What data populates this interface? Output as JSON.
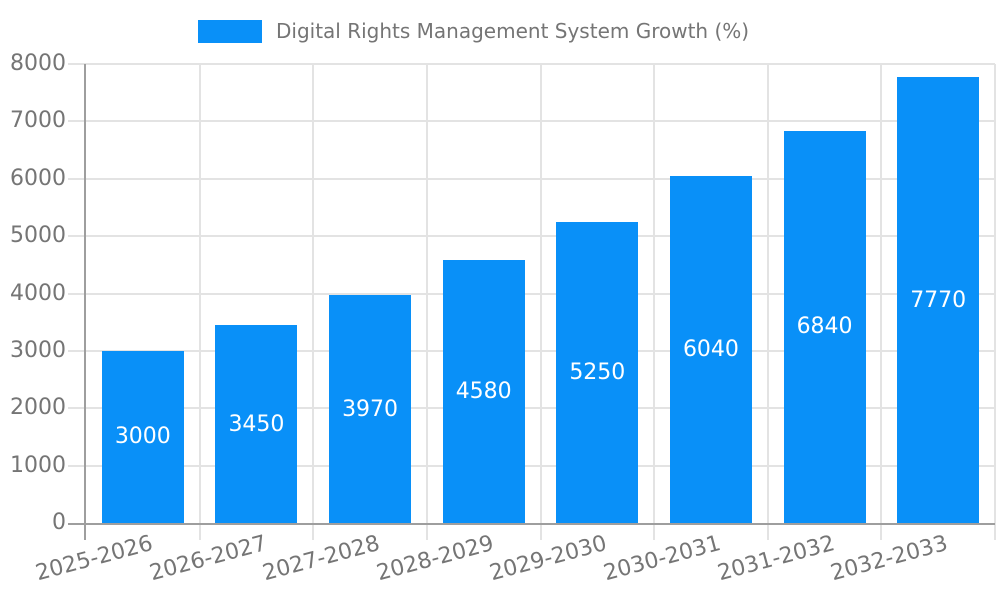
{
  "legend": {
    "label": "Digital Rights Management System Growth (%)"
  },
  "colors": {
    "bar": "#0990f8",
    "grid": "#e3e3e3",
    "axis": "#9e9e9e",
    "tick_label": "#757575",
    "legend_text": "#757575",
    "bar_label": "#ffffff",
    "background": "#ffffff"
  },
  "chart_data": {
    "type": "bar",
    "title": "Digital Rights Management System Growth (%)",
    "series_name": "Digital Rights Management System Growth (%)",
    "categories": [
      "2025-2026",
      "2026-2027",
      "2027-2028",
      "2028-2029",
      "2029-2030",
      "2030-2031",
      "2031-2032",
      "2032-2033"
    ],
    "values": [
      3000,
      3450,
      3970,
      4580,
      5250,
      6040,
      6840,
      7770
    ],
    "value_labels": "inside-center",
    "xlabel": "",
    "ylabel": "",
    "ylim": [
      0,
      8000
    ],
    "ytick_step": 1000,
    "yticks": [
      0,
      1000,
      2000,
      3000,
      4000,
      5000,
      6000,
      7000,
      8000
    ],
    "grid": true,
    "legend_position": "top",
    "x_tick_rotation_deg": -15
  }
}
